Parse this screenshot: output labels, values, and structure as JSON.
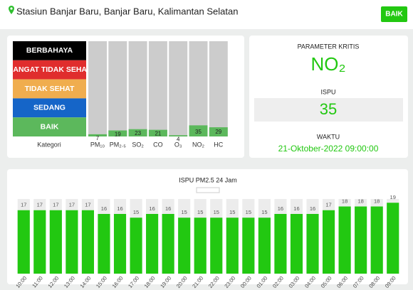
{
  "header": {
    "location": "Stasiun Banjar Baru, Banjar Baru, Kalimantan Selatan",
    "status": "BAIK"
  },
  "summary": {
    "critical_label": "PARAMETER KRITIS",
    "critical_value": "NO₂",
    "ispu_label": "ISPU",
    "ispu_value": 35,
    "time_label": "WAKTU",
    "time_value": "21-Oktober-2022 09:00:00"
  },
  "chart_data": [
    {
      "type": "bar",
      "xlabel": "Kategori",
      "levels": [
        {
          "name": "BERBAHAYA",
          "color": "#000000"
        },
        {
          "name": "SANGAT TIDAK SEHAT",
          "color": "#e02d2d"
        },
        {
          "name": "TIDAK SEHAT",
          "color": "#f0ad4e"
        },
        {
          "name": "SEDANG",
          "color": "#1565c8"
        },
        {
          "name": "BAIK",
          "color": "#5cb85c"
        }
      ],
      "categories": [
        "PM₁₀",
        "PM₂.₅",
        "SO₂",
        "CO",
        "O₃",
        "NO₂",
        "HC"
      ],
      "values": [
        7,
        19,
        23,
        21,
        4,
        35,
        29
      ],
      "color": "#5cb85c",
      "ylim": [
        0,
        300
      ]
    },
    {
      "type": "bar",
      "title": "ISPU PM2.5 24 Jam",
      "categories": [
        "10:00",
        "11:00",
        "12:00",
        "13:00",
        "14:00",
        "15:00",
        "16:00",
        "17:00",
        "18:00",
        "19:00",
        "20:00",
        "21:00",
        "22:00",
        "23:00",
        "00:00",
        "01:00",
        "02:00",
        "03:00",
        "04:00",
        "05:00",
        "06:00",
        "07:00",
        "08:00",
        "09:00"
      ],
      "values": [
        17,
        17,
        17,
        17,
        17,
        16,
        16,
        15,
        16,
        16,
        15,
        15,
        15,
        15,
        15,
        15,
        16,
        16,
        16,
        17,
        18,
        18,
        18,
        19
      ],
      "color": "#22c811",
      "ylim": [
        0,
        20
      ]
    }
  ]
}
